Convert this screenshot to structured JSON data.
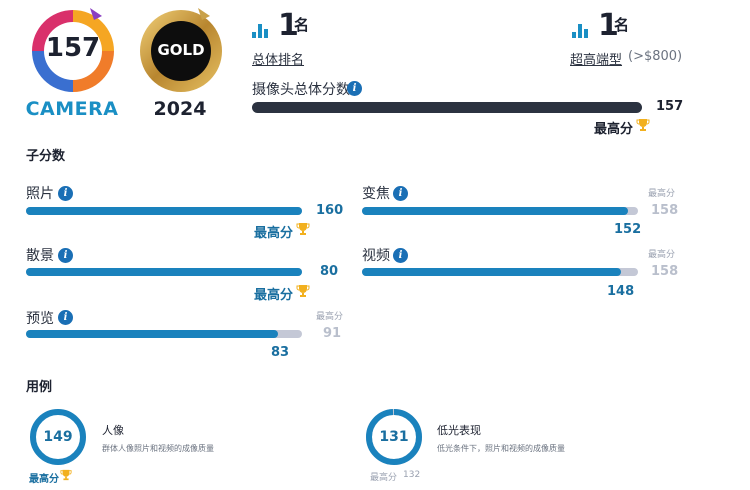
{
  "header": {
    "camera_score": "157",
    "camera_label": "CAMERA",
    "gold_label": "GOLD",
    "gold_year": "2024"
  },
  "rankings": {
    "overall": {
      "number": "1",
      "suffix": "名",
      "label": "总体排名"
    },
    "segment": {
      "number": "1",
      "suffix": "名",
      "label": "超高端型",
      "extra": "(>$800)"
    }
  },
  "overall": {
    "title": "摄像头总体分数",
    "value": "157",
    "fraction": 1.0,
    "best_label": "最高分"
  },
  "sub_scores": {
    "title": "子分数",
    "items": [
      {
        "label": "照片",
        "value": "160",
        "best": "",
        "best_label": "最高分",
        "fraction": 1.0
      },
      {
        "label": "变焦",
        "value": "152",
        "best": "158",
        "best_small": "最高分",
        "fraction": 0.962
      },
      {
        "label": "散景",
        "value": "80",
        "best": "",
        "best_label": "最高分",
        "fraction": 1.0
      },
      {
        "label": "视频",
        "value": "148",
        "best": "158",
        "best_small": "最高分",
        "fraction": 0.937
      },
      {
        "label": "预览",
        "value": "83",
        "best": "91",
        "best_small": "最高分",
        "fraction": 0.912
      }
    ]
  },
  "use_cases": {
    "title": "用例",
    "items": [
      {
        "value": "149",
        "title": "人像",
        "desc": "群体人像照片和视频的成像质量",
        "best_label": "最高分",
        "fraction": 1.0
      },
      {
        "value": "131",
        "title": "低光表现",
        "desc": "低光条件下，照片和视频的成像质量",
        "best_label": "最高分",
        "best_value": "132",
        "fraction": 0.992
      }
    ]
  },
  "colors": {
    "accent": "#1a82bd",
    "dark_bar": "#2b3240",
    "track": "#c4c8d6",
    "gold": "#c9a14a"
  }
}
